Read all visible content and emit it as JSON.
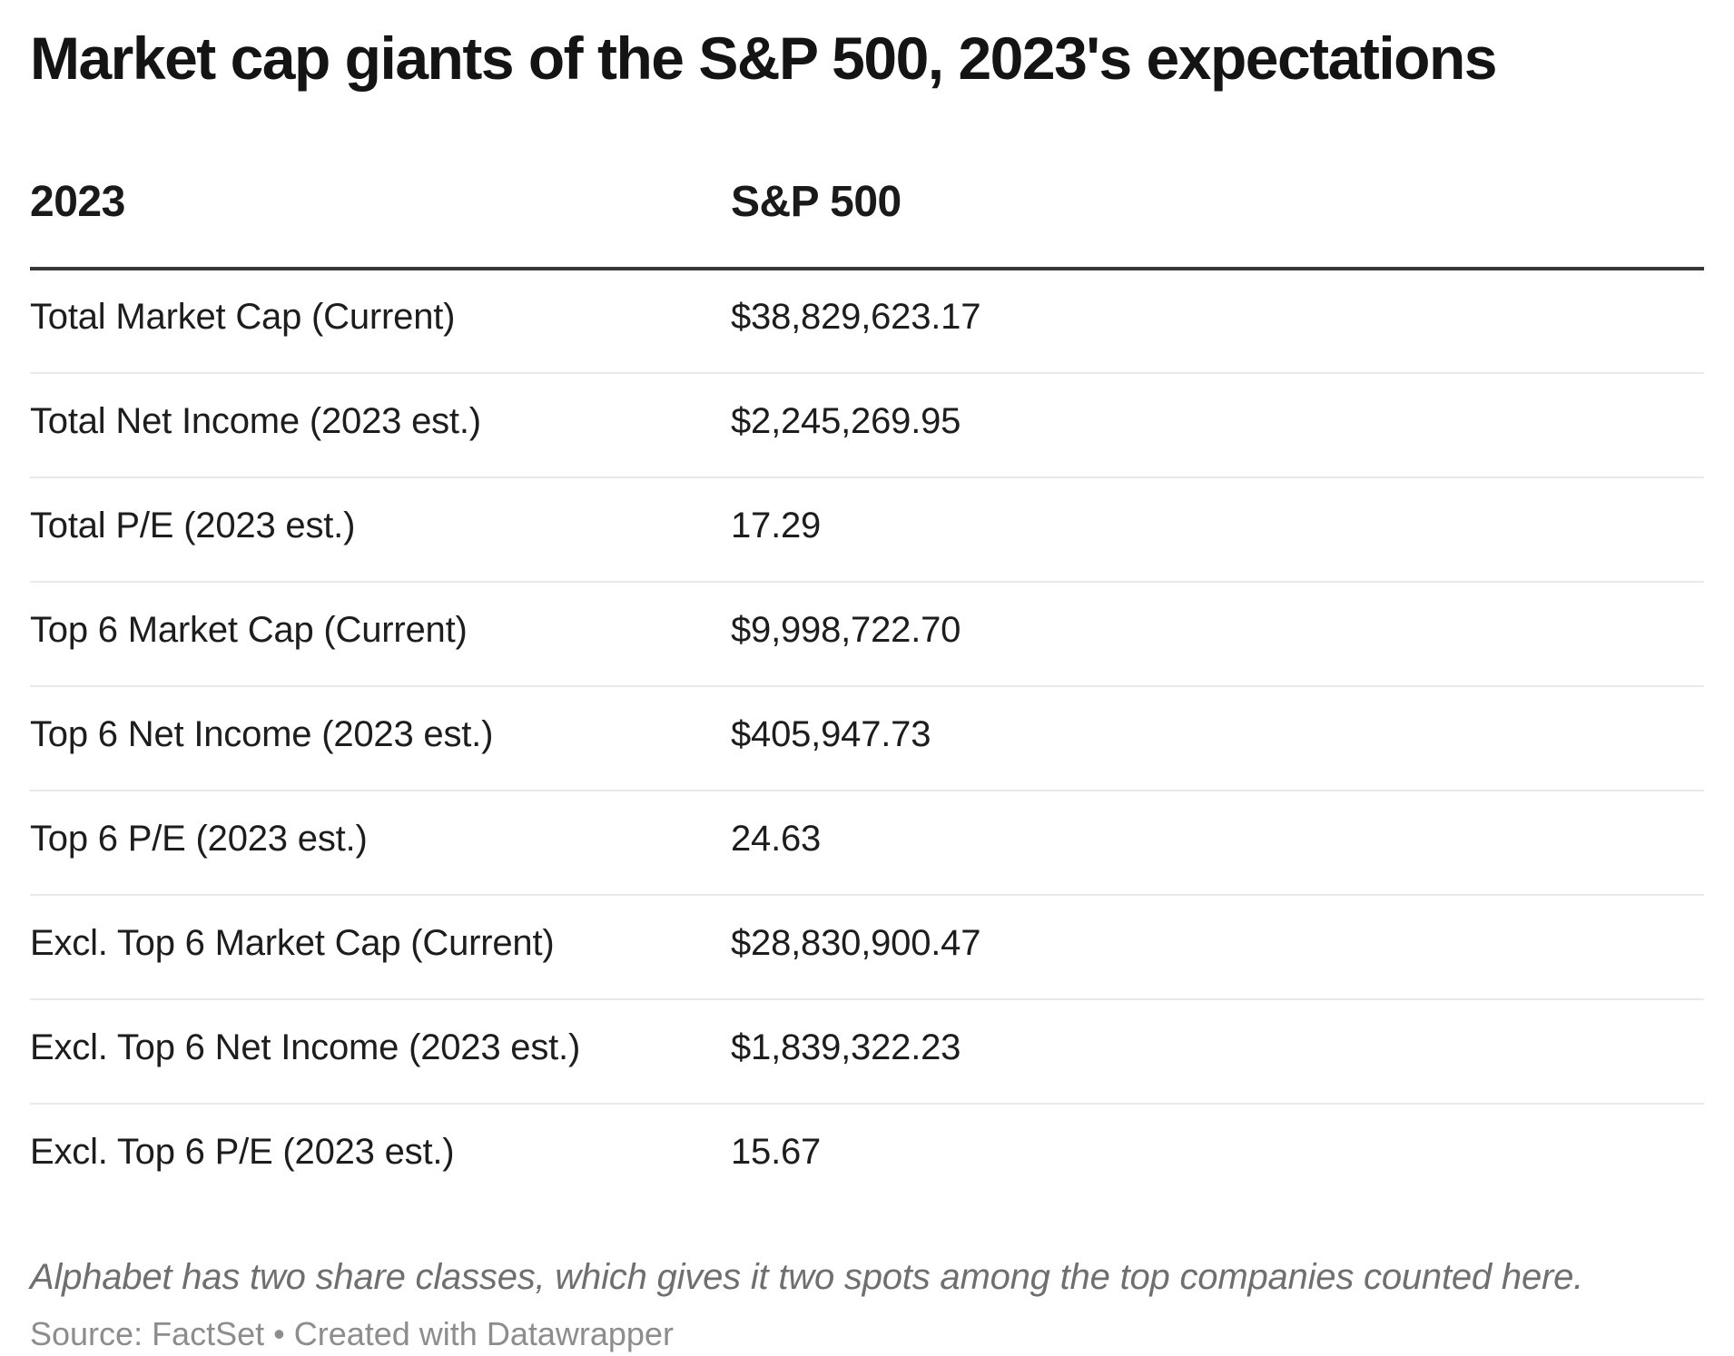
{
  "chart_data": {
    "type": "table",
    "title": "Market cap giants of the S&P 500, 2023's expectations",
    "columns": [
      "2023",
      "S&P 500"
    ],
    "rows": [
      {
        "label": "Total Market Cap (Current)",
        "value": "$38,829,623.17"
      },
      {
        "label": "Total Net Income (2023 est.)",
        "value": "$2,245,269.95"
      },
      {
        "label": "Total P/E (2023 est.)",
        "value": "17.29"
      },
      {
        "label": "Top 6 Market Cap (Current)",
        "value": "$9,998,722.70"
      },
      {
        "label": "Top 6 Net Income (2023 est.)",
        "value": "$405,947.73"
      },
      {
        "label": "Top 6 P/E (2023 est.)",
        "value": "24.63"
      },
      {
        "label": "Excl. Top 6 Market Cap (Current)",
        "value": "$28,830,900.47"
      },
      {
        "label": "Excl. Top 6 Net Income (2023 est.)",
        "value": "$1,839,322.23"
      },
      {
        "label": "Excl. Top 6 P/E (2023 est.)",
        "value": "15.67"
      }
    ],
    "note": "Alphabet has two share classes, which gives it two spots among the top companies counted here.",
    "source": "Source: FactSet • Created with Datawrapper",
    "layout": {
      "legend_position": "none",
      "grid": "horizontal-separators-only"
    }
  },
  "colors": {
    "title_text": "#141414",
    "row_text": "#1d1d1d",
    "header_rule": "#383838",
    "row_separator": "#e9e9e9",
    "note_text": "#6f6f6f",
    "source_text": "#8d8d8d",
    "background": "#ffffff"
  }
}
